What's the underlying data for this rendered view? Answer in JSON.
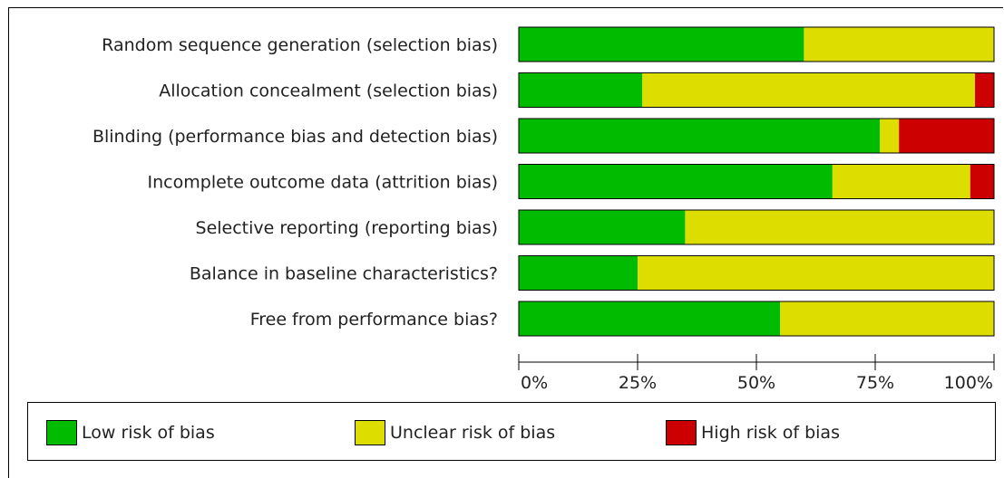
{
  "chart_data": {
    "type": "bar",
    "stacked": true,
    "orientation": "horizontal",
    "categories": [
      "Random sequence generation (selection bias)",
      "Allocation concealment (selection bias)",
      "Blinding (performance bias and detection bias)",
      "Incomplete outcome data (attrition bias)",
      "Selective reporting (reporting bias)",
      "Balance in baseline characteristics?",
      "Free from performance bias?"
    ],
    "series": [
      {
        "name": "Low risk of bias",
        "color": "#00bb00",
        "values": [
          60,
          26,
          76,
          66,
          35,
          25,
          55
        ]
      },
      {
        "name": "Unclear risk of bias",
        "color": "#dddd00",
        "values": [
          40,
          70,
          4,
          29,
          65,
          75,
          45
        ]
      },
      {
        "name": "High risk of bias",
        "color": "#cc0000",
        "values": [
          0,
          4,
          20,
          5,
          0,
          0,
          0
        ]
      }
    ],
    "xlim": [
      0,
      100
    ],
    "x_ticks": [
      "0%",
      "25%",
      "50%",
      "75%",
      "100%"
    ],
    "legend_position": "bottom"
  }
}
